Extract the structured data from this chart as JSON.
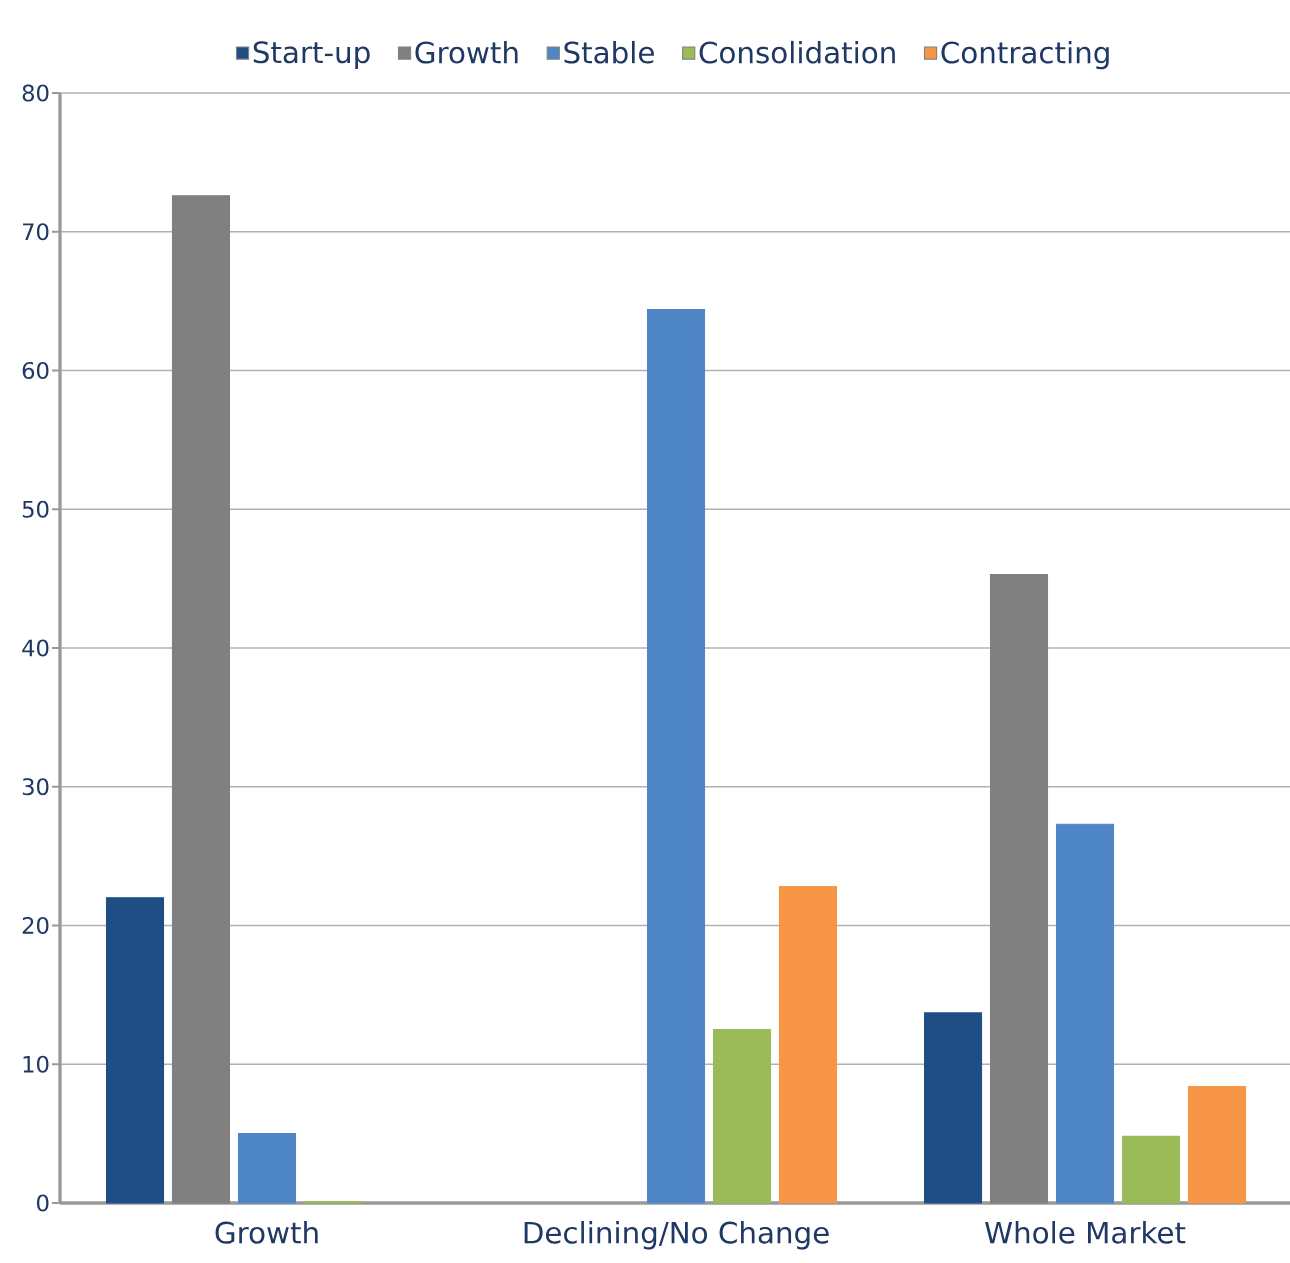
{
  "chart_data": {
    "type": "bar",
    "categories": [
      "Growth",
      "Declining/No Change",
      "Whole Market"
    ],
    "series": [
      {
        "name": "Start-up",
        "color": "#1f4e85",
        "values": [
          22,
          null,
          13.7
        ]
      },
      {
        "name": "Growth",
        "color": "#808080",
        "values": [
          72.6,
          null,
          45.3
        ]
      },
      {
        "name": "Stable",
        "color": "#4f86c6",
        "values": [
          5,
          64.4,
          27.3
        ]
      },
      {
        "name": "Consolidation",
        "color": "#9bbb59",
        "values": [
          0.1,
          12.5,
          4.8
        ]
      },
      {
        "name": "Contracting",
        "color": "#f79646",
        "values": [
          null,
          22.8,
          8.4
        ]
      }
    ],
    "ylim": [
      0,
      80
    ],
    "yticks": [
      0,
      10,
      20,
      30,
      40,
      50,
      60,
      70,
      80
    ],
    "grid": "y",
    "legend": "top"
  }
}
